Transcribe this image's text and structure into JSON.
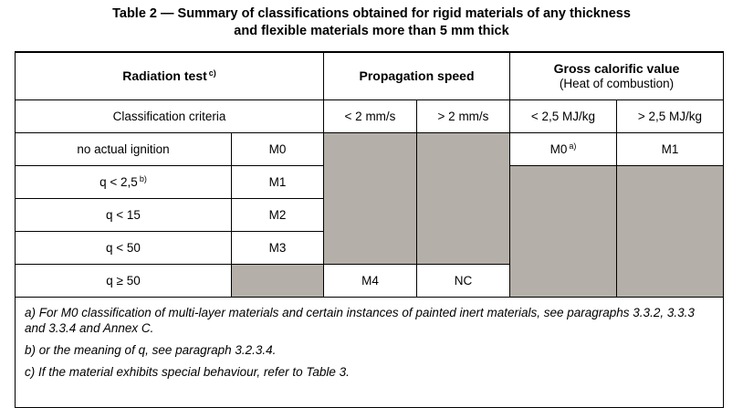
{
  "caption": {
    "line1": "Table 2 — Summary of classifications obtained for rigid materials of any thickness",
    "line2": "and flexible materials more than 5 mm thick"
  },
  "header": {
    "radiation_test": "Radiation test",
    "radiation_test_note": "c)",
    "propagation_speed": "Propagation speed",
    "gross_calorific_value": "Gross calorific value",
    "heat_of_combustion": "(Heat of combustion)"
  },
  "criteria_row": {
    "label": "Classification criteria",
    "prop_low": "< 2 mm/s",
    "prop_high": "> 2 mm/s",
    "cal_low": "< 2,5 MJ/kg",
    "cal_high": "> 2,5 MJ/kg"
  },
  "rows": [
    {
      "criterion": "no actual ignition",
      "criterion_note": "",
      "class": "M0"
    },
    {
      "criterion": "q < 2,5",
      "criterion_note": "b)",
      "class": "M1"
    },
    {
      "criterion": "q < 15",
      "criterion_note": "",
      "class": "M2"
    },
    {
      "criterion": "q < 50",
      "criterion_note": "",
      "class": "M3"
    },
    {
      "criterion": "q ≥ 50",
      "criterion_note": "",
      "class": ""
    }
  ],
  "calorific_results": {
    "low": "M0",
    "low_note": "a)",
    "high": "M1"
  },
  "propagation_results": {
    "low": "M4",
    "high": "NC"
  },
  "notes": [
    "a)  For M0 classification of multi-layer materials and certain instances of painted inert materials, see paragraphs 3.3.2, 3.3.3 and 3.3.4 and Annex C.",
    "b)  or the meaning of q, see paragraph 3.2.3.4.",
    "c)  If the material exhibits special behaviour, refer to Table 3."
  ],
  "colors": {
    "grey_fill": "#b4afa8",
    "border": "#000000"
  }
}
